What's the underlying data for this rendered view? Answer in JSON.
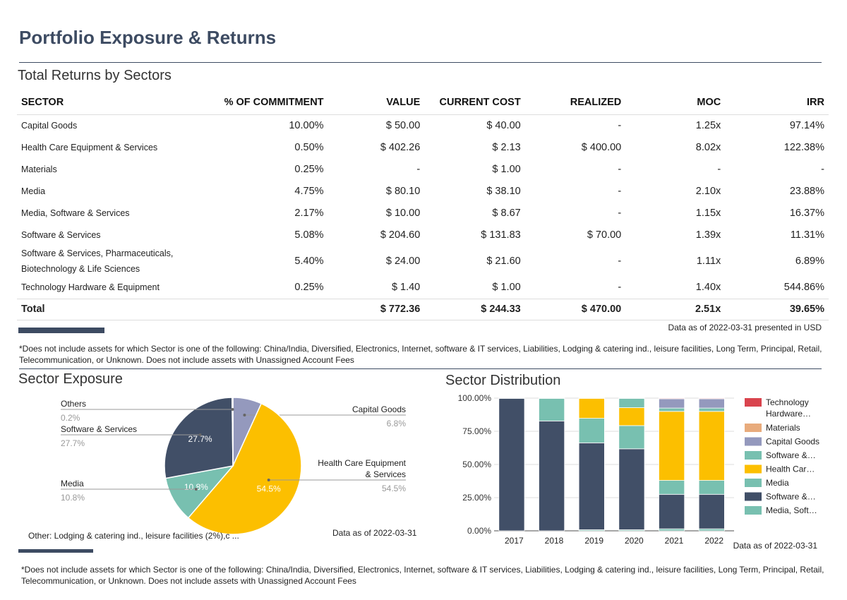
{
  "title": "Portfolio Exposure & Returns",
  "returns": {
    "heading": "Total Returns by Sectors",
    "columns": [
      "SECTOR",
      "% OF COMMITMENT",
      "VALUE",
      "CURRENT COST",
      "REALIZED",
      "MOC",
      "IRR"
    ],
    "rows": [
      [
        "Capital Goods",
        "10.00%",
        "$ 50.00",
        "$ 40.00",
        "-",
        "1.25x",
        "97.14%"
      ],
      [
        "Health Care Equipment & Services",
        "0.50%",
        "$ 402.26",
        "$ 2.13",
        "$ 400.00",
        "8.02x",
        "122.38%"
      ],
      [
        "Materials",
        "0.25%",
        "-",
        "$ 1.00",
        "-",
        "-",
        "-"
      ],
      [
        "Media",
        "4.75%",
        "$ 80.10",
        "$ 38.10",
        "-",
        "2.10x",
        "23.88%"
      ],
      [
        "Media, Software & Services",
        "2.17%",
        "$ 10.00",
        "$ 8.67",
        "-",
        "1.15x",
        "16.37%"
      ],
      [
        "Software & Services",
        "5.08%",
        "$ 204.60",
        "$ 131.83",
        "$ 70.00",
        "1.39x",
        "11.31%"
      ],
      [
        "Software & Services, Pharmaceuticals, Biotechnology & Life Sciences",
        "5.40%",
        "$ 24.00",
        "$ 21.60",
        "-",
        "1.11x",
        "6.89%"
      ],
      [
        "Technology Hardware & Equipment",
        "0.25%",
        "$ 1.40",
        "$ 1.00",
        "-",
        "1.40x",
        "544.86%"
      ]
    ],
    "total": [
      "Total",
      "",
      "$ 772.36",
      "$ 244.33",
      "$ 470.00",
      "2.51x",
      "39.65%"
    ],
    "as_of": "Data as of 2022-03-31 presented in USD",
    "footnote": "*Does not include assets for which Sector is one of the following: China/India, Diversified, Electronics, Internet, software & IT services, Liabilities, Lodging & catering ind., leisure facilities, Long Term, Principal, Retail, Telecommunication, or Unknown. Does not include assets with Unassigned Account Fees"
  },
  "exposure": {
    "heading": "Sector Exposure",
    "other_note": "Other: Lodging & catering ind., leisure facilities (2%),c ...",
    "as_of": "Data as of 2022-03-31"
  },
  "distribution": {
    "heading": "Sector Distribution",
    "as_of": "Data as of 2022-03-31"
  },
  "footnote2": "*Does not include assets for which Sector is one of the following: China/India, Diversified, Electronics, Internet, software & IT services, Liabilities, Lodging & catering ind., leisure facilities, Long Term, Principal, Retail, Telecommunication, or Unknown. Does not include assets with Unassigned Account Fees",
  "chart_data": [
    {
      "type": "pie",
      "slices": [
        {
          "label": "Capital Goods",
          "value": 6.8,
          "color": "#9499bd"
        },
        {
          "label": "Health Care Equipment & Services",
          "value": 54.5,
          "color": "#fcbf00"
        },
        {
          "label": "Media",
          "value": 10.8,
          "color": "#78c0b0"
        },
        {
          "label": "Software & Services",
          "value": 27.7,
          "color": "#414f67"
        },
        {
          "label": "Others",
          "value": 0.2,
          "color": "#cccccc"
        }
      ]
    },
    {
      "type": "bar",
      "stacked": true,
      "categories": [
        "2017",
        "2018",
        "2019",
        "2020",
        "2021",
        "2022"
      ],
      "yticks": [
        "0.00%",
        "25.00%",
        "50.00%",
        "75.00%",
        "100.00%"
      ],
      "ylim": [
        0,
        100
      ],
      "series": [
        {
          "name": "Media, Soft…",
          "color": "#78c0b0",
          "values": [
            0,
            0,
            0.8,
            0.8,
            1.5,
            1.5
          ]
        },
        {
          "name": "Software &…",
          "color": "#414f67",
          "values": [
            99.8,
            82.8,
            65.5,
            61,
            26,
            26
          ]
        },
        {
          "name": "Media",
          "color": "#78c0b0",
          "values": [
            0,
            17,
            18.5,
            17.5,
            10.5,
            10.5
          ]
        },
        {
          "name": "Health Car…",
          "color": "#fcbf00",
          "values": [
            0,
            0,
            15,
            13.5,
            52,
            52
          ]
        },
        {
          "name": "Software &…",
          "color": "#78c0b0",
          "values": [
            0,
            0,
            0,
            7,
            2.5,
            2.5
          ]
        },
        {
          "name": "Capital Goods",
          "color": "#9499bd",
          "values": [
            0,
            0,
            0,
            0,
            7,
            7
          ]
        },
        {
          "name": "Materials",
          "color": "#e8ab7c",
          "values": [
            0,
            0,
            0,
            0,
            0,
            0
          ]
        },
        {
          "name": "Technology Hardware…",
          "color": "#d9444e",
          "values": [
            0.2,
            0.2,
            0.2,
            0.2,
            0.5,
            0.5
          ]
        }
      ]
    }
  ]
}
